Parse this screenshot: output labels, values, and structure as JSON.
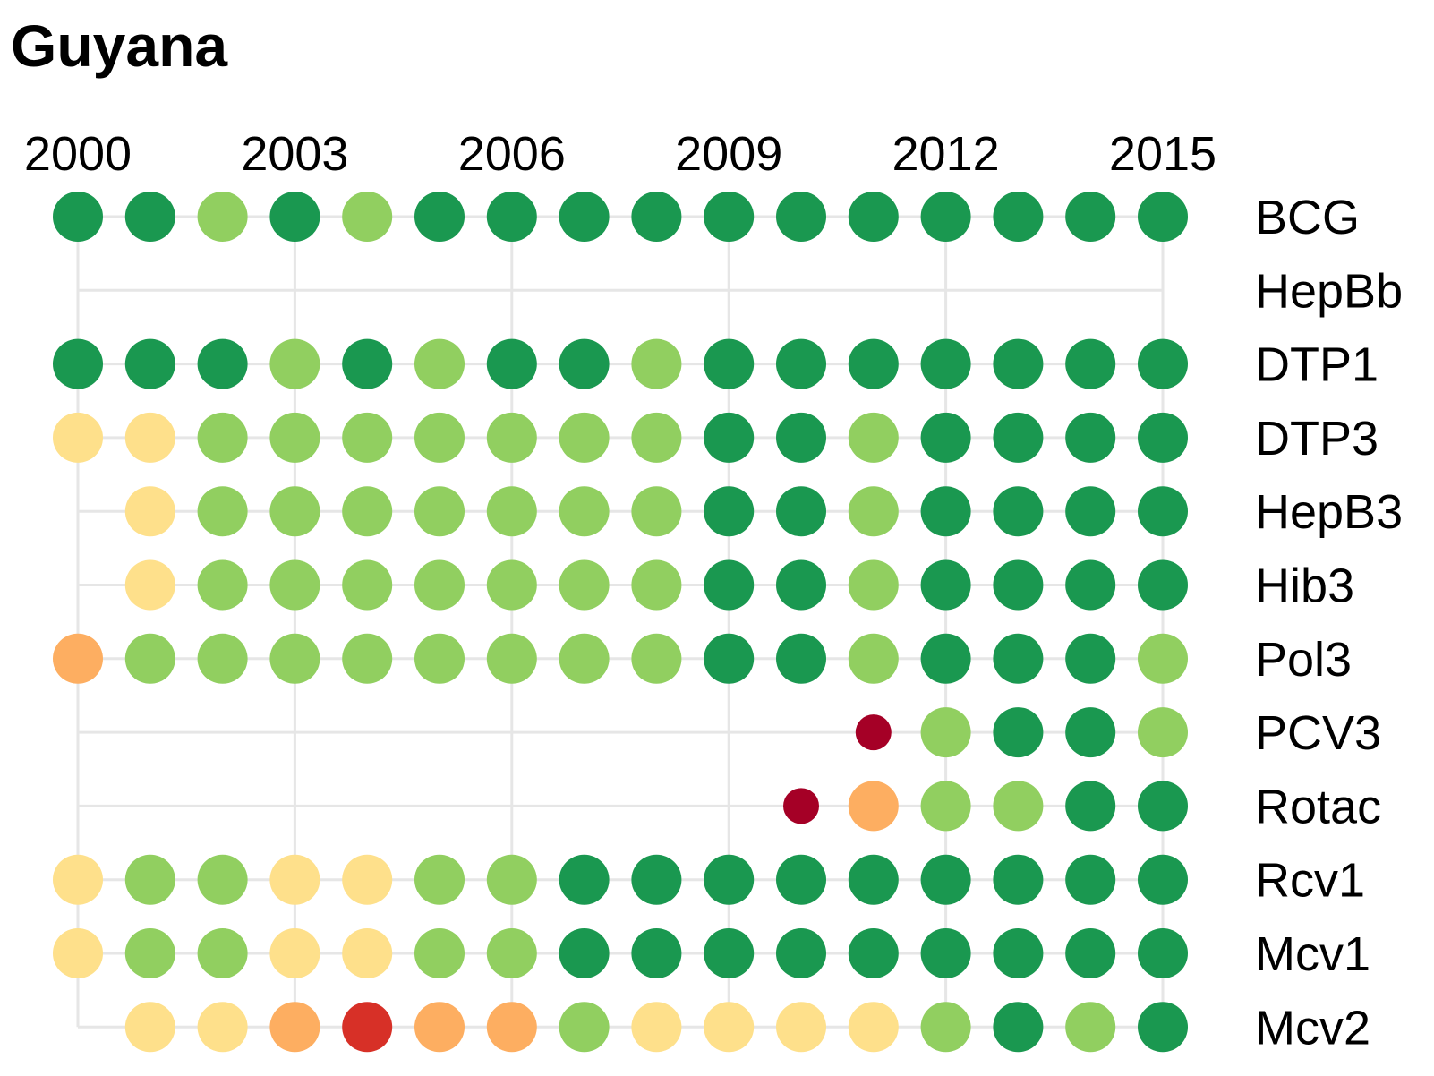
{
  "chart_data": {
    "type": "dot-matrix",
    "title": "Guyana",
    "x": [
      "2000",
      "2001",
      "2002",
      "2003",
      "2004",
      "2005",
      "2006",
      "2007",
      "2008",
      "2009",
      "2010",
      "2011",
      "2012",
      "2013",
      "2014",
      "2015"
    ],
    "x_tick_labels": [
      "2000",
      "2003",
      "2006",
      "2009",
      "2012",
      "2015"
    ],
    "grid": true,
    "colors": {
      "dark_green": "#1a9850",
      "light_green": "#91cf60",
      "yellow": "#fee08b",
      "orange": "#fdae61",
      "red": "#d73027",
      "dark_red": "#a50026",
      "grid": "#e6e6e6"
    },
    "series": [
      {
        "name": "BCG",
        "values": [
          "dark_green",
          "dark_green",
          "light_green",
          "dark_green",
          "light_green",
          "dark_green",
          "dark_green",
          "dark_green",
          "dark_green",
          "dark_green",
          "dark_green",
          "dark_green",
          "dark_green",
          "dark_green",
          "dark_green",
          "dark_green"
        ]
      },
      {
        "name": "HepBb",
        "values": [
          null,
          null,
          null,
          null,
          null,
          null,
          null,
          null,
          null,
          null,
          null,
          null,
          null,
          null,
          null,
          null
        ]
      },
      {
        "name": "DTP1",
        "values": [
          "dark_green",
          "dark_green",
          "dark_green",
          "light_green",
          "dark_green",
          "light_green",
          "dark_green",
          "dark_green",
          "light_green",
          "dark_green",
          "dark_green",
          "dark_green",
          "dark_green",
          "dark_green",
          "dark_green",
          "dark_green"
        ]
      },
      {
        "name": "DTP3",
        "values": [
          "yellow",
          "yellow",
          "light_green",
          "light_green",
          "light_green",
          "light_green",
          "light_green",
          "light_green",
          "light_green",
          "dark_green",
          "dark_green",
          "light_green",
          "dark_green",
          "dark_green",
          "dark_green",
          "dark_green"
        ]
      },
      {
        "name": "HepB3",
        "values": [
          null,
          "yellow",
          "light_green",
          "light_green",
          "light_green",
          "light_green",
          "light_green",
          "light_green",
          "light_green",
          "dark_green",
          "dark_green",
          "light_green",
          "dark_green",
          "dark_green",
          "dark_green",
          "dark_green"
        ]
      },
      {
        "name": "Hib3",
        "values": [
          null,
          "yellow",
          "light_green",
          "light_green",
          "light_green",
          "light_green",
          "light_green",
          "light_green",
          "light_green",
          "dark_green",
          "dark_green",
          "light_green",
          "dark_green",
          "dark_green",
          "dark_green",
          "dark_green"
        ]
      },
      {
        "name": "Pol3",
        "values": [
          "orange",
          "light_green",
          "light_green",
          "light_green",
          "light_green",
          "light_green",
          "light_green",
          "light_green",
          "light_green",
          "dark_green",
          "dark_green",
          "light_green",
          "dark_green",
          "dark_green",
          "dark_green",
          "light_green"
        ]
      },
      {
        "name": "PCV3",
        "values": [
          null,
          null,
          null,
          null,
          null,
          null,
          null,
          null,
          null,
          null,
          null,
          "dark_red",
          "light_green",
          "dark_green",
          "dark_green",
          "light_green"
        ]
      },
      {
        "name": "Rotac",
        "values": [
          null,
          null,
          null,
          null,
          null,
          null,
          null,
          null,
          null,
          null,
          "dark_red",
          "orange",
          "light_green",
          "light_green",
          "dark_green",
          "dark_green"
        ]
      },
      {
        "name": "Rcv1",
        "values": [
          "yellow",
          "light_green",
          "light_green",
          "yellow",
          "yellow",
          "light_green",
          "light_green",
          "dark_green",
          "dark_green",
          "dark_green",
          "dark_green",
          "dark_green",
          "dark_green",
          "dark_green",
          "dark_green",
          "dark_green"
        ]
      },
      {
        "name": "Mcv1",
        "values": [
          "yellow",
          "light_green",
          "light_green",
          "yellow",
          "yellow",
          "light_green",
          "light_green",
          "dark_green",
          "dark_green",
          "dark_green",
          "dark_green",
          "dark_green",
          "dark_green",
          "dark_green",
          "dark_green",
          "dark_green"
        ]
      },
      {
        "name": "Mcv2",
        "values": [
          null,
          "yellow",
          "yellow",
          "orange",
          "red",
          "orange",
          "orange",
          "light_green",
          "yellow",
          "yellow",
          "yellow",
          "yellow",
          "light_green",
          "dark_green",
          "light_green",
          "dark_green"
        ]
      }
    ],
    "small_dots": [
      {
        "series": "PCV3",
        "x": "2011"
      },
      {
        "series": "Rotac",
        "x": "2010"
      }
    ]
  }
}
